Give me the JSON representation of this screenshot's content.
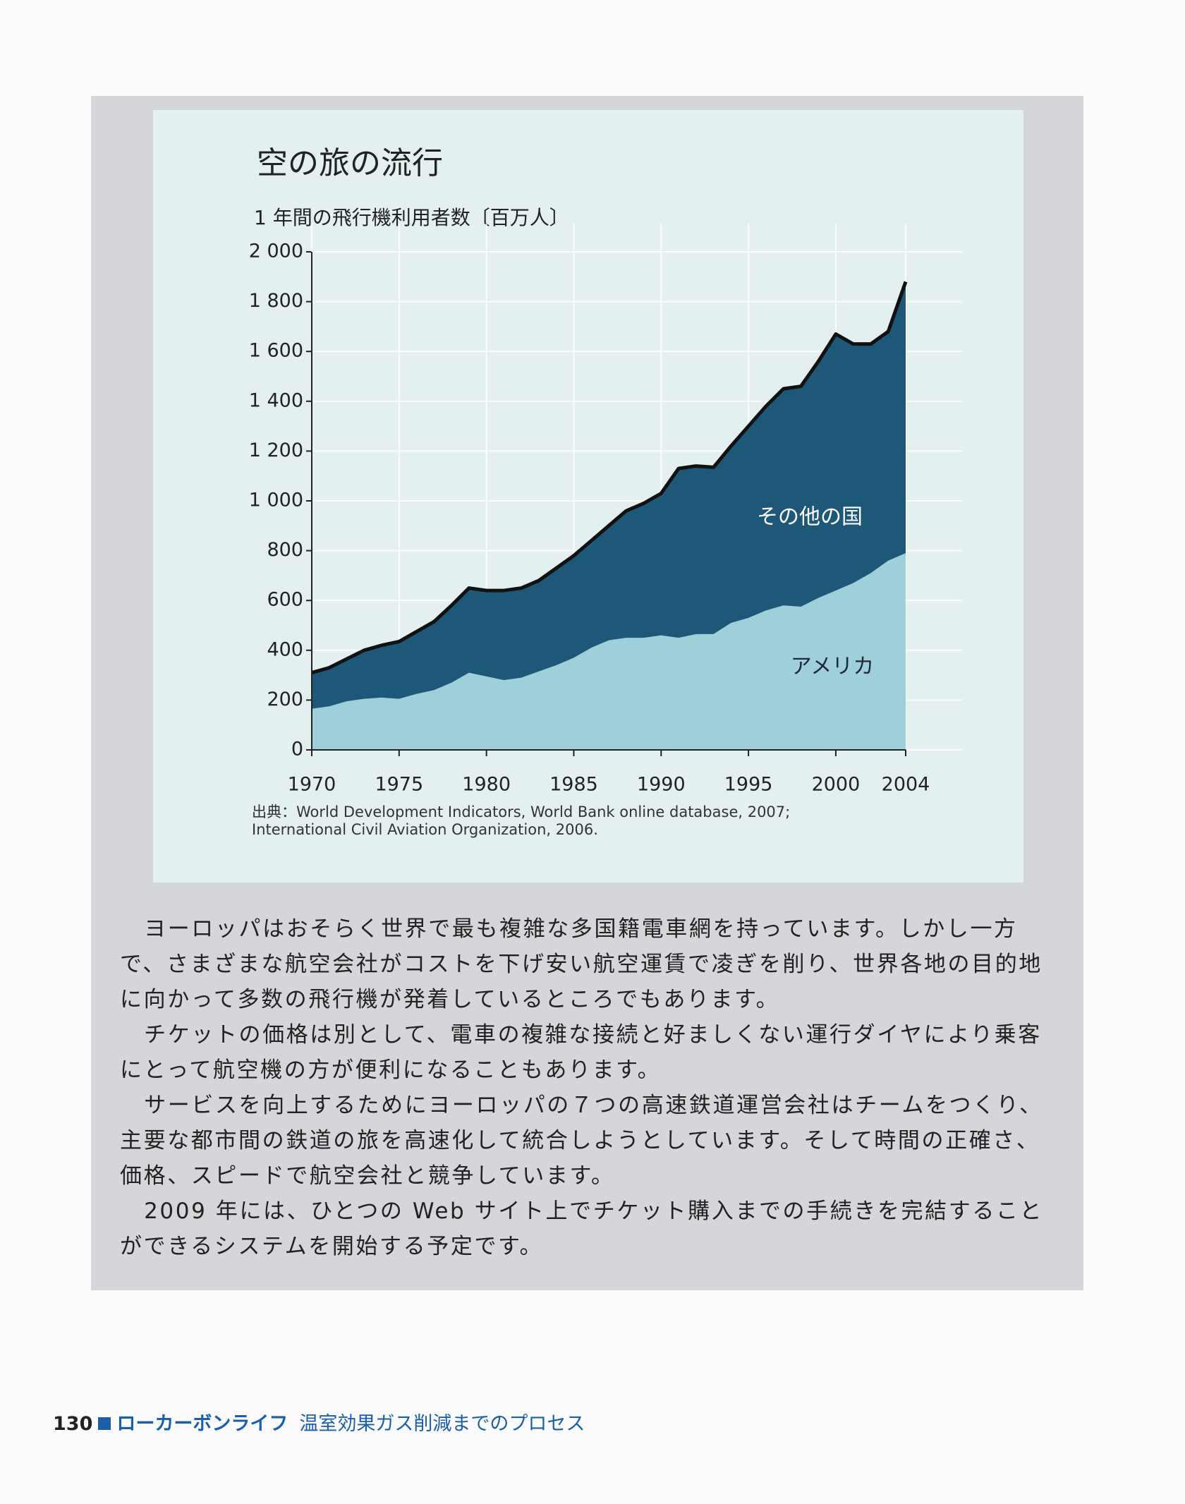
{
  "chart_data": {
    "type": "stacked-area",
    "title": "空の旅の流行",
    "y_label": "1 年間の飛行機利用者数〔百万人〕",
    "x": [
      1970,
      1971,
      1972,
      1973,
      1974,
      1975,
      1976,
      1977,
      1978,
      1979,
      1980,
      1981,
      1982,
      1983,
      1984,
      1985,
      1986,
      1987,
      1988,
      1989,
      1990,
      1991,
      1992,
      1993,
      1994,
      1995,
      1996,
      1997,
      1998,
      1999,
      2000,
      2001,
      2002,
      2003,
      2004
    ],
    "series": [
      {
        "name": "アメリカ",
        "color": "#9fd0da",
        "values": [
          165,
          175,
          195,
          205,
          210,
          205,
          225,
          240,
          270,
          310,
          295,
          280,
          290,
          315,
          340,
          370,
          410,
          440,
          450,
          450,
          460,
          450,
          465,
          465,
          510,
          530,
          560,
          580,
          575,
          610,
          640,
          670,
          710,
          760,
          790
        ]
      },
      {
        "name": "その他の国",
        "color": "#1e5878",
        "values": [
          145,
          155,
          170,
          195,
          210,
          230,
          250,
          275,
          310,
          340,
          345,
          360,
          360,
          365,
          390,
          410,
          430,
          460,
          510,
          540,
          570,
          680,
          675,
          670,
          710,
          770,
          820,
          870,
          885,
          950,
          1030,
          960,
          920,
          920,
          1090
        ]
      }
    ],
    "xlim": [
      1970,
      2004
    ],
    "xticks": [
      1970,
      1975,
      1980,
      1985,
      1990,
      1995,
      2000,
      2004
    ],
    "ylim": [
      0,
      2000
    ],
    "yticks": [
      0,
      200,
      400,
      600,
      800,
      {
        "value": 1000,
        "label": "1 000"
      },
      {
        "value": 1200,
        "label": "1 200"
      },
      {
        "value": 1400,
        "label": "1 400"
      },
      {
        "value": 1600,
        "label": "1 600"
      },
      {
        "value": 1800,
        "label": "1 800"
      },
      {
        "value": 2000,
        "label": "2 000"
      }
    ],
    "grid": true,
    "source": [
      "出典：World Development Indicators, World Bank online database, 2007;",
      "International Civil Aviation Organization, 2006."
    ]
  },
  "body": {
    "paragraphs": [
      "ヨーロッパはおそらく世界で最も複雑な多国籍電車網を持っています。しかし一方で、さまざまな航空会社がコストを下げ安い航空運賃で凌ぎを削り、世界各地の目的地に向かって多数の飛行機が発着しているところでもあります。",
      "チケットの価格は別として、電車の複雑な接続と好ましくない運行ダイヤにより乗客にとって航空機の方が便利になることもあります。",
      "サービスを向上するためにヨーロッパの７つの高速鉄道運営会社はチームをつくり、主要な都市間の鉄道の旅を高速化して統合しようとしています。そして時間の正確さ、価格、スピードで航空会社と競争しています。",
      "2009 年には、ひとつの Web サイト上でチケット購入までの手続きを完結することができるシステムを開始する予定です。"
    ]
  },
  "footer": {
    "page": "130",
    "section": "ローカーボンライフ",
    "subtitle": "温室効果ガス削減までのプロセス"
  }
}
